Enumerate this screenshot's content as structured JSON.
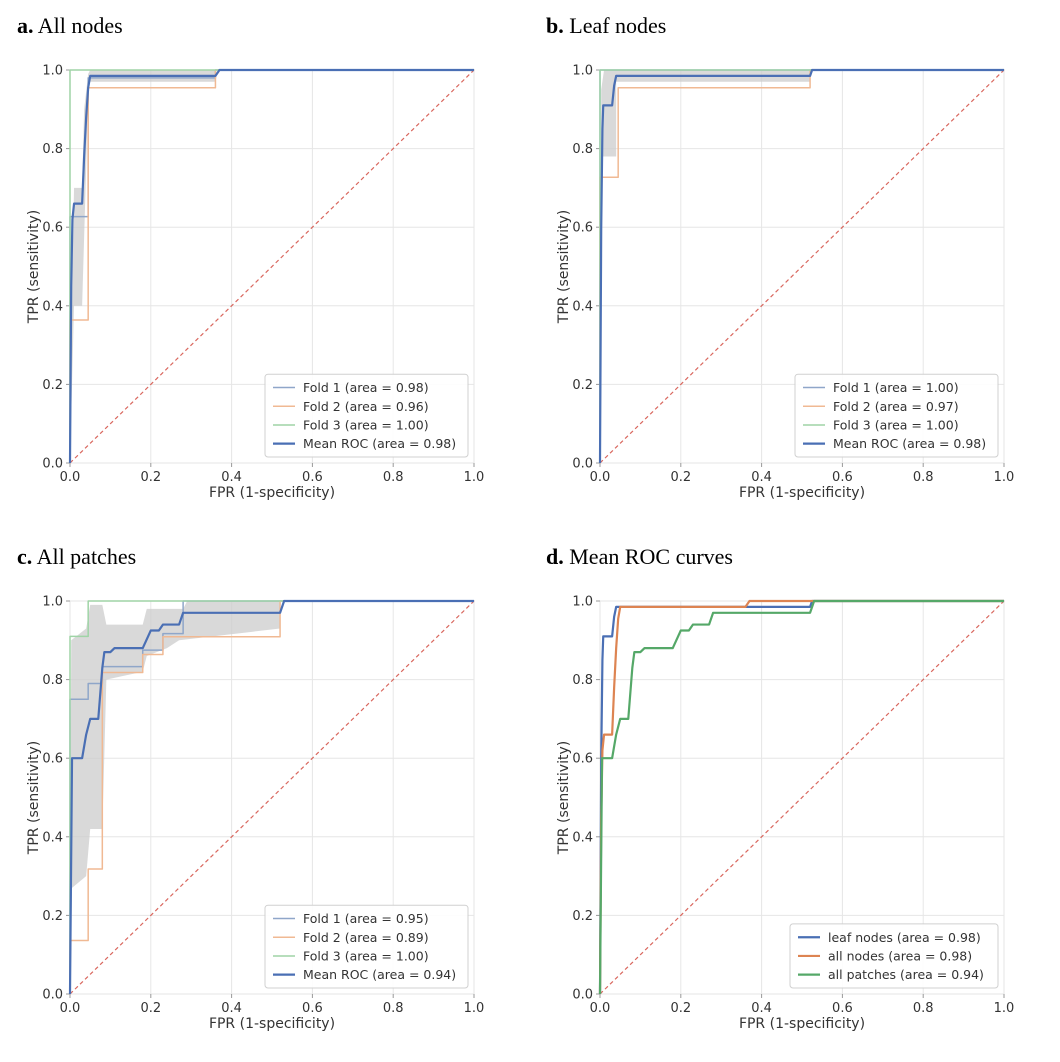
{
  "colors": {
    "fold1": "#8fa6c9",
    "fold2": "#f0b993",
    "fold3": "#9fd4a6",
    "mean": "#4a6fb4",
    "band": "#cccccc",
    "chance": "#d9675e",
    "mean_leaf": "#4a6fb4",
    "mean_all_nodes": "#dd8452",
    "mean_all_patches": "#55a868",
    "grid": "#e6e6e6",
    "axis": "#999999"
  },
  "chart_data": [
    {
      "type": "line",
      "panel_letter": "a.",
      "panel_name": "All nodes",
      "xlabel": "FPR (1-specificity)",
      "ylabel": "TPR (sensitivity)",
      "xlim": [
        0,
        1
      ],
      "ylim": [
        0,
        1
      ],
      "xticks": [
        "0.0",
        "0.2",
        "0.4",
        "0.6",
        "0.8",
        "1.0"
      ],
      "yticks": [
        "0.0",
        "0.2",
        "0.4",
        "0.6",
        "0.8",
        "1.0"
      ],
      "grid": true,
      "legend_position": "lower-right",
      "chance_line": true,
      "band": {
        "upper": [
          [
            0,
            0
          ],
          [
            0.005,
            0.45
          ],
          [
            0.01,
            0.7
          ],
          [
            0.03,
            0.7
          ],
          [
            0.035,
            0.9
          ],
          [
            0.045,
            0.99
          ],
          [
            0.05,
            1.0
          ],
          [
            1,
            1
          ]
        ],
        "lower": [
          [
            0,
            0
          ],
          [
            0.01,
            0.4
          ],
          [
            0.03,
            0.4
          ],
          [
            0.04,
            0.75
          ],
          [
            0.045,
            0.97
          ],
          [
            0.36,
            0.97
          ],
          [
            0.36,
            1.0
          ],
          [
            1,
            1
          ]
        ]
      },
      "series": [
        {
          "name": "Fold 1",
          "legend": "Fold 1 (area = 0.98)",
          "color_key": "fold1",
          "width": 1.5,
          "points": [
            [
              0,
              0
            ],
            [
              0,
              0.627
            ],
            [
              0.045,
              0.627
            ],
            [
              0.045,
              0.98
            ],
            [
              0.36,
              0.98
            ],
            [
              0.36,
              1.0
            ],
            [
              1,
              1
            ]
          ]
        },
        {
          "name": "Fold 2",
          "legend": "Fold 2 (area = 0.96)",
          "color_key": "fold2",
          "width": 1.5,
          "points": [
            [
              0,
              0
            ],
            [
              0,
              0.364
            ],
            [
              0.045,
              0.364
            ],
            [
              0.045,
              0.955
            ],
            [
              0.36,
              0.955
            ],
            [
              0.36,
              1.0
            ],
            [
              1,
              1
            ]
          ]
        },
        {
          "name": "Fold 3",
          "legend": "Fold 3 (area = 1.00)",
          "color_key": "fold3",
          "width": 1.5,
          "points": [
            [
              0,
              0
            ],
            [
              0,
              1.0
            ],
            [
              1,
              1
            ]
          ]
        },
        {
          "name": "Mean ROC",
          "legend": "Mean ROC (area = 0.98)",
          "color_key": "mean",
          "width": 2.2,
          "points": [
            [
              0,
              0
            ],
            [
              0.003,
              0.45
            ],
            [
              0.006,
              0.62
            ],
            [
              0.01,
              0.66
            ],
            [
              0.03,
              0.66
            ],
            [
              0.035,
              0.78
            ],
            [
              0.04,
              0.88
            ],
            [
              0.045,
              0.955
            ],
            [
              0.05,
              0.985
            ],
            [
              0.36,
              0.985
            ],
            [
              0.37,
              1.0
            ],
            [
              1,
              1
            ]
          ]
        }
      ]
    },
    {
      "type": "line",
      "panel_letter": "b.",
      "panel_name": "Leaf nodes",
      "xlabel": "FPR (1-specificity)",
      "ylabel": "TPR (sensitivity)",
      "xlim": [
        0,
        1
      ],
      "ylim": [
        0,
        1
      ],
      "xticks": [
        "0.0",
        "0.2",
        "0.4",
        "0.6",
        "0.8",
        "1.0"
      ],
      "yticks": [
        "0.0",
        "0.2",
        "0.4",
        "0.6",
        "0.8",
        "1.0"
      ],
      "grid": true,
      "legend_position": "lower-right",
      "chance_line": true,
      "band": {
        "upper": [
          [
            0,
            0
          ],
          [
            0.003,
            0.95
          ],
          [
            0.01,
            1.0
          ],
          [
            1,
            1
          ]
        ],
        "lower": [
          [
            0,
            0
          ],
          [
            0.005,
            0.78
          ],
          [
            0.04,
            0.78
          ],
          [
            0.04,
            0.97
          ],
          [
            0.52,
            0.97
          ],
          [
            0.52,
            1.0
          ],
          [
            1,
            1
          ]
        ]
      },
      "series": [
        {
          "name": "Fold 1",
          "legend": "Fold 1 (area = 1.00)",
          "color_key": "fold1",
          "width": 1.5,
          "points": [
            [
              0,
              0
            ],
            [
              0,
              1.0
            ],
            [
              1,
              1
            ]
          ]
        },
        {
          "name": "Fold 2",
          "legend": "Fold 2 (area = 0.97)",
          "color_key": "fold2",
          "width": 1.5,
          "points": [
            [
              0,
              0
            ],
            [
              0,
              0.727
            ],
            [
              0.045,
              0.727
            ],
            [
              0.045,
              0.955
            ],
            [
              0.52,
              0.955
            ],
            [
              0.52,
              1.0
            ],
            [
              1,
              1
            ]
          ]
        },
        {
          "name": "Fold 3",
          "legend": "Fold 3 (area = 1.00)",
          "color_key": "fold3",
          "width": 1.5,
          "points": [
            [
              0,
              0
            ],
            [
              0,
              1.0
            ],
            [
              1,
              1
            ]
          ]
        },
        {
          "name": "Mean ROC",
          "legend": "Mean ROC (area = 0.98)",
          "color_key": "mean",
          "width": 2.2,
          "points": [
            [
              0,
              0
            ],
            [
              0.003,
              0.6
            ],
            [
              0.006,
              0.85
            ],
            [
              0.008,
              0.91
            ],
            [
              0.03,
              0.91
            ],
            [
              0.035,
              0.96
            ],
            [
              0.04,
              0.985
            ],
            [
              0.52,
              0.985
            ],
            [
              0.525,
              1.0
            ],
            [
              1,
              1
            ]
          ]
        }
      ]
    },
    {
      "type": "line",
      "panel_letter": "c.",
      "panel_name": "All patches",
      "xlabel": "FPR (1-specificity)",
      "ylabel": "TPR (sensitivity)",
      "xlim": [
        0,
        1
      ],
      "ylim": [
        0,
        1
      ],
      "xticks": [
        "0.0",
        "0.2",
        "0.4",
        "0.6",
        "0.8",
        "1.0"
      ],
      "yticks": [
        "0.0",
        "0.2",
        "0.4",
        "0.6",
        "0.8",
        "1.0"
      ],
      "grid": true,
      "legend_position": "lower-right",
      "chance_line": true,
      "band": {
        "upper": [
          [
            0,
            0
          ],
          [
            0.003,
            0.9
          ],
          [
            0.04,
            0.93
          ],
          [
            0.05,
            0.99
          ],
          [
            0.08,
            0.99
          ],
          [
            0.09,
            0.94
          ],
          [
            0.18,
            0.94
          ],
          [
            0.19,
            0.98
          ],
          [
            0.28,
            0.98
          ],
          [
            0.29,
            1.0
          ],
          [
            1,
            1
          ]
        ],
        "lower": [
          [
            0,
            0
          ],
          [
            0.005,
            0.27
          ],
          [
            0.04,
            0.3
          ],
          [
            0.05,
            0.42
          ],
          [
            0.08,
            0.42
          ],
          [
            0.09,
            0.8
          ],
          [
            0.18,
            0.82
          ],
          [
            0.19,
            0.86
          ],
          [
            0.24,
            0.88
          ],
          [
            0.27,
            0.9
          ],
          [
            0.52,
            0.93
          ],
          [
            0.52,
            1.0
          ],
          [
            1,
            1
          ]
        ]
      },
      "series": [
        {
          "name": "Fold 1",
          "legend": "Fold 1 (area = 0.95)",
          "color_key": "fold1",
          "width": 1.5,
          "points": [
            [
              0,
              0
            ],
            [
              0,
              0.75
            ],
            [
              0.045,
              0.75
            ],
            [
              0.045,
              0.79
            ],
            [
              0.08,
              0.79
            ],
            [
              0.08,
              0.833
            ],
            [
              0.18,
              0.833
            ],
            [
              0.18,
              0.875
            ],
            [
              0.23,
              0.875
            ],
            [
              0.23,
              0.917
            ],
            [
              0.28,
              0.917
            ],
            [
              0.28,
              1.0
            ],
            [
              1,
              1
            ]
          ]
        },
        {
          "name": "Fold 2",
          "legend": "Fold 2 (area = 0.89)",
          "color_key": "fold2",
          "width": 1.5,
          "points": [
            [
              0,
              0
            ],
            [
              0,
              0.136
            ],
            [
              0.045,
              0.136
            ],
            [
              0.045,
              0.318
            ],
            [
              0.08,
              0.318
            ],
            [
              0.08,
              0.818
            ],
            [
              0.18,
              0.818
            ],
            [
              0.18,
              0.864
            ],
            [
              0.23,
              0.864
            ],
            [
              0.23,
              0.909
            ],
            [
              0.52,
              0.909
            ],
            [
              0.52,
              1.0
            ],
            [
              1,
              1
            ]
          ]
        },
        {
          "name": "Fold 3",
          "legend": "Fold 3 (area = 1.00)",
          "color_key": "fold3",
          "width": 1.5,
          "points": [
            [
              0,
              0
            ],
            [
              0,
              0.91
            ],
            [
              0.045,
              0.91
            ],
            [
              0.045,
              1.0
            ],
            [
              1,
              1
            ]
          ]
        },
        {
          "name": "Mean ROC",
          "legend": "Mean ROC (area = 0.94)",
          "color_key": "mean",
          "width": 2.2,
          "points": [
            [
              0,
              0
            ],
            [
              0.005,
              0.6
            ],
            [
              0.03,
              0.6
            ],
            [
              0.04,
              0.66
            ],
            [
              0.05,
              0.7
            ],
            [
              0.07,
              0.7
            ],
            [
              0.08,
              0.83
            ],
            [
              0.085,
              0.87
            ],
            [
              0.1,
              0.87
            ],
            [
              0.11,
              0.88
            ],
            [
              0.18,
              0.88
            ],
            [
              0.2,
              0.925
            ],
            [
              0.22,
              0.925
            ],
            [
              0.23,
              0.94
            ],
            [
              0.27,
              0.94
            ],
            [
              0.28,
              0.97
            ],
            [
              0.52,
              0.97
            ],
            [
              0.53,
              1.0
            ],
            [
              1,
              1
            ]
          ]
        }
      ]
    },
    {
      "type": "line",
      "panel_letter": "d.",
      "panel_name": "Mean ROC curves",
      "xlabel": "FPR (1-specificity)",
      "ylabel": "TPR (sensitivity)",
      "xlim": [
        0,
        1
      ],
      "ylim": [
        0,
        1
      ],
      "xticks": [
        "0.0",
        "0.2",
        "0.4",
        "0.6",
        "0.8",
        "1.0"
      ],
      "yticks": [
        "0.0",
        "0.2",
        "0.4",
        "0.6",
        "0.8",
        "1.0"
      ],
      "grid": true,
      "legend_position": "lower-right",
      "chance_line": true,
      "series": [
        {
          "name": "leaf nodes",
          "legend": "leaf nodes (area = 0.98)",
          "color_key": "mean_leaf",
          "width": 2.2,
          "points": [
            [
              0,
              0
            ],
            [
              0.003,
              0.6
            ],
            [
              0.006,
              0.85
            ],
            [
              0.008,
              0.91
            ],
            [
              0.03,
              0.91
            ],
            [
              0.035,
              0.96
            ],
            [
              0.04,
              0.985
            ],
            [
              0.52,
              0.985
            ],
            [
              0.525,
              1.0
            ],
            [
              1,
              1
            ]
          ]
        },
        {
          "name": "all nodes",
          "legend": "all nodes (area = 0.98)",
          "color_key": "mean_all_nodes",
          "width": 2.2,
          "points": [
            [
              0,
              0
            ],
            [
              0.003,
              0.45
            ],
            [
              0.006,
              0.62
            ],
            [
              0.01,
              0.66
            ],
            [
              0.03,
              0.66
            ],
            [
              0.035,
              0.78
            ],
            [
              0.04,
              0.88
            ],
            [
              0.045,
              0.955
            ],
            [
              0.05,
              0.985
            ],
            [
              0.36,
              0.985
            ],
            [
              0.37,
              1.0
            ],
            [
              1,
              1
            ]
          ]
        },
        {
          "name": "all patches",
          "legend": "all patches (area = 0.94)",
          "color_key": "mean_all_patches",
          "width": 2.2,
          "points": [
            [
              0,
              0
            ],
            [
              0.005,
              0.6
            ],
            [
              0.03,
              0.6
            ],
            [
              0.04,
              0.66
            ],
            [
              0.05,
              0.7
            ],
            [
              0.07,
              0.7
            ],
            [
              0.08,
              0.83
            ],
            [
              0.085,
              0.87
            ],
            [
              0.1,
              0.87
            ],
            [
              0.11,
              0.88
            ],
            [
              0.18,
              0.88
            ],
            [
              0.2,
              0.925
            ],
            [
              0.22,
              0.925
            ],
            [
              0.23,
              0.94
            ],
            [
              0.27,
              0.94
            ],
            [
              0.28,
              0.97
            ],
            [
              0.52,
              0.97
            ],
            [
              0.53,
              1.0
            ],
            [
              1,
              1
            ]
          ]
        }
      ]
    }
  ]
}
